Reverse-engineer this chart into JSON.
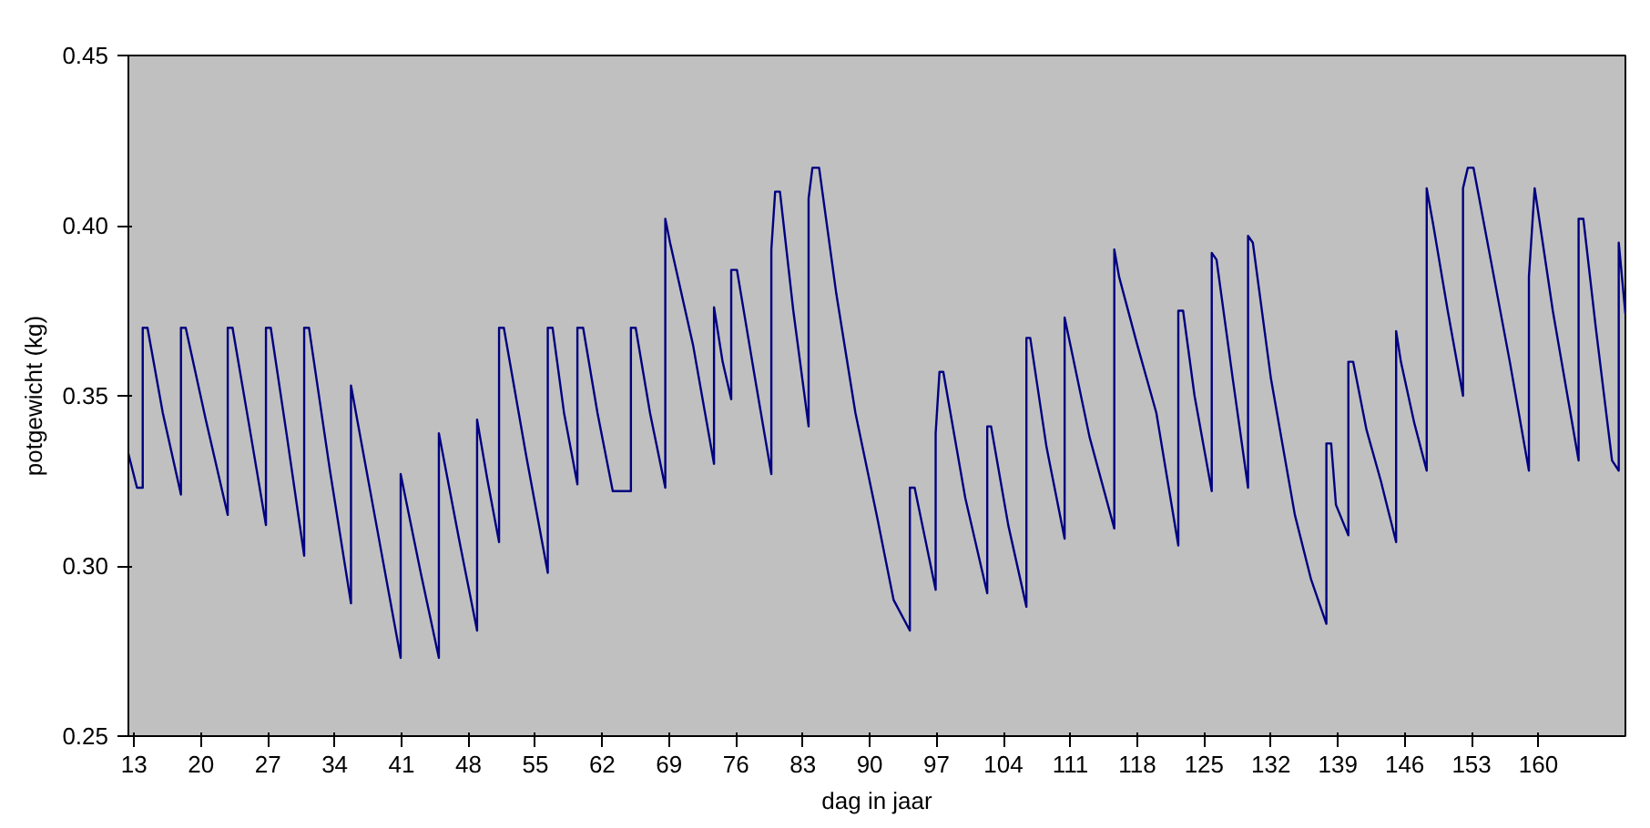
{
  "chart_data": {
    "type": "line",
    "xlabel": "dag in jaar",
    "ylabel": "potgewicht (kg)",
    "xlim": [
      12.4,
      169.1
    ],
    "ylim": [
      0.25,
      0.45
    ],
    "xticks": [
      13,
      20,
      27,
      34,
      41,
      48,
      55,
      62,
      69,
      76,
      83,
      90,
      97,
      104,
      111,
      118,
      125,
      132,
      139,
      146,
      153,
      160
    ],
    "yticks": [
      {
        "value": 0.25,
        "label": "0.25"
      },
      {
        "value": 0.3,
        "label": "0.30"
      },
      {
        "value": 0.35,
        "label": "0.35"
      },
      {
        "value": 0.4,
        "label": "0.40"
      },
      {
        "value": 0.45,
        "label": "0.45"
      }
    ],
    "grid": false,
    "marker": "none",
    "line_style": "solid",
    "series": [
      {
        "color": "#000080",
        "x": [
          12.4,
          13.3,
          13.9,
          13.9,
          14.4,
          16,
          17.9,
          17.9,
          18.4,
          20.5,
          22.8,
          22.8,
          23.3,
          25,
          26.8,
          26.8,
          27.3,
          29,
          30.8,
          30.8,
          31.3,
          33.5,
          35.7,
          35.7,
          38.3,
          40.9,
          40.9,
          43,
          44.9,
          44.9,
          47,
          48.9,
          48.9,
          50,
          51.2,
          51.2,
          51.7,
          54,
          56.3,
          56.3,
          56.8,
          58,
          59.4,
          59.4,
          60,
          61.5,
          63.1,
          65.0,
          65.0,
          65.5,
          67,
          68.6,
          68.6,
          69.1,
          71.5,
          73.7,
          73.7,
          74.6,
          75.5,
          75.5,
          76.1,
          78,
          79.7,
          79.7,
          80.1,
          80.6,
          82,
          83.6,
          83.6,
          84,
          84.7,
          86.5,
          88.5,
          90.8,
          92.5,
          94.2,
          94.2,
          94.7,
          96.9,
          96.9,
          97.3,
          97.7,
          100,
          102.3,
          102.3,
          102.7,
          104.5,
          106.4,
          106.4,
          106.8,
          108.5,
          110.4,
          110.4,
          111,
          113,
          115.6,
          115.6,
          116.1,
          118,
          120,
          122.3,
          122.3,
          122.8,
          124,
          125.8,
          125.8,
          126.3,
          128,
          129.6,
          129.6,
          130.1,
          132,
          134.5,
          136.2,
          137.8,
          137.8,
          138.3,
          138.8,
          140.1,
          140.1,
          140.6,
          142,
          143.5,
          145.1,
          145.1,
          145.6,
          147,
          148.3,
          148.3,
          149,
          150.5,
          152.1,
          152.1,
          152.6,
          153.2,
          155,
          157,
          159.0,
          159.0,
          159.6,
          161.5,
          164.2,
          164.2,
          164.7,
          166,
          167.7,
          168.4,
          168.4,
          169.1
        ],
        "values": [
          0.333,
          0.323,
          0.323,
          0.37,
          0.37,
          0.345,
          0.321,
          0.37,
          0.37,
          0.343,
          0.315,
          0.37,
          0.37,
          0.342,
          0.312,
          0.37,
          0.37,
          0.338,
          0.303,
          0.37,
          0.37,
          0.328,
          0.289,
          0.353,
          0.313,
          0.273,
          0.327,
          0.298,
          0.273,
          0.339,
          0.308,
          0.281,
          0.343,
          0.325,
          0.307,
          0.37,
          0.37,
          0.333,
          0.298,
          0.37,
          0.37,
          0.345,
          0.324,
          0.37,
          0.37,
          0.345,
          0.322,
          0.322,
          0.37,
          0.37,
          0.345,
          0.323,
          0.402,
          0.395,
          0.365,
          0.33,
          0.376,
          0.36,
          0.349,
          0.387,
          0.387,
          0.355,
          0.327,
          0.393,
          0.41,
          0.41,
          0.375,
          0.341,
          0.408,
          0.417,
          0.417,
          0.38,
          0.345,
          0.314,
          0.29,
          0.281,
          0.323,
          0.323,
          0.293,
          0.339,
          0.357,
          0.357,
          0.32,
          0.292,
          0.341,
          0.341,
          0.312,
          0.288,
          0.367,
          0.367,
          0.335,
          0.308,
          0.373,
          0.365,
          0.338,
          0.311,
          0.393,
          0.385,
          0.365,
          0.345,
          0.306,
          0.375,
          0.375,
          0.35,
          0.322,
          0.392,
          0.39,
          0.355,
          0.323,
          0.397,
          0.395,
          0.355,
          0.315,
          0.296,
          0.283,
          0.336,
          0.336,
          0.318,
          0.309,
          0.36,
          0.36,
          0.34,
          0.325,
          0.307,
          0.369,
          0.36,
          0.342,
          0.328,
          0.411,
          0.4,
          0.375,
          0.35,
          0.411,
          0.417,
          0.417,
          0.39,
          0.36,
          0.328,
          0.385,
          0.411,
          0.375,
          0.331,
          0.402,
          0.402,
          0.37,
          0.331,
          0.328,
          0.395,
          0.374
        ]
      }
    ]
  }
}
